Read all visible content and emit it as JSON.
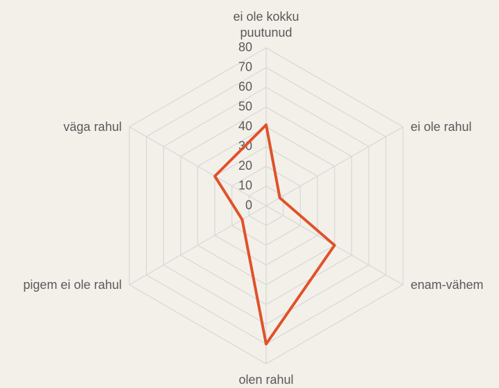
{
  "chart_data": {
    "type": "radar",
    "categories": [
      "ei ole kokku puutunud",
      "ei ole rahul",
      "enam-vähem",
      "olen rahul",
      "pigem ei ole rahul",
      "väga rahul"
    ],
    "series": [
      {
        "name": null,
        "color": "#e0522a",
        "values": [
          41,
          8,
          40,
          70,
          14,
          30
        ]
      }
    ],
    "ylim": [
      0,
      80
    ],
    "yticks": [
      0,
      10,
      20,
      30,
      40,
      50,
      60,
      70,
      80
    ],
    "grid": true
  }
}
